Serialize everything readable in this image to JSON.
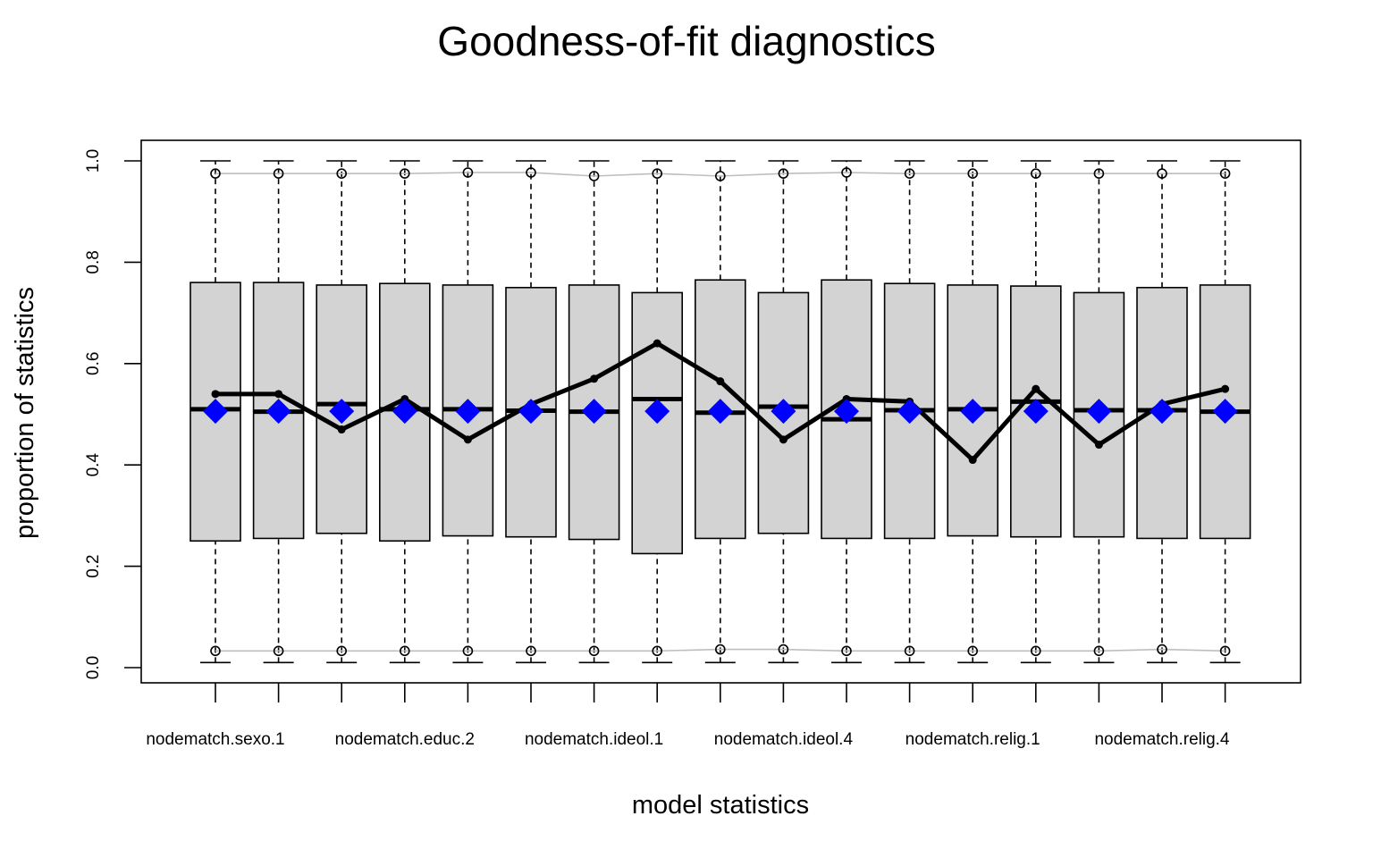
{
  "chart_data": {
    "type": "boxplot",
    "title": "Goodness-of-fit diagnostics",
    "xlabel": "model statistics",
    "ylabel": "proportion of statistics",
    "ylim": [
      0.0,
      1.0
    ],
    "yticks": [
      "0.0",
      "0.2",
      "0.4",
      "0.6",
      "0.8",
      "1.0"
    ],
    "xtick_labels": [
      "nodematch.sexo.1",
      "nodematch.educ.2",
      "nodematch.ideol.1",
      "nodematch.ideol.4",
      "nodematch.relig.1",
      "nodematch.relig.4"
    ],
    "xtick_label_positions": [
      1,
      4,
      7,
      10,
      13,
      16
    ],
    "n_boxes": 17,
    "boxes": [
      {
        "q1": 0.25,
        "median": 0.51,
        "q3": 0.76,
        "whisker_low": 0.01,
        "whisker_high": 1.0
      },
      {
        "q1": 0.255,
        "median": 0.505,
        "q3": 0.76,
        "whisker_low": 0.01,
        "whisker_high": 1.0
      },
      {
        "q1": 0.265,
        "median": 0.52,
        "q3": 0.755,
        "whisker_low": 0.01,
        "whisker_high": 1.0
      },
      {
        "q1": 0.25,
        "median": 0.51,
        "q3": 0.758,
        "whisker_low": 0.01,
        "whisker_high": 1.0
      },
      {
        "q1": 0.26,
        "median": 0.51,
        "q3": 0.755,
        "whisker_low": 0.01,
        "whisker_high": 1.0
      },
      {
        "q1": 0.258,
        "median": 0.507,
        "q3": 0.75,
        "whisker_low": 0.01,
        "whisker_high": 1.0
      },
      {
        "q1": 0.253,
        "median": 0.505,
        "q3": 0.755,
        "whisker_low": 0.01,
        "whisker_high": 1.0
      },
      {
        "q1": 0.225,
        "median": 0.53,
        "q3": 0.74,
        "whisker_low": 0.01,
        "whisker_high": 1.0
      },
      {
        "q1": 0.255,
        "median": 0.503,
        "q3": 0.765,
        "whisker_low": 0.01,
        "whisker_high": 1.0
      },
      {
        "q1": 0.265,
        "median": 0.515,
        "q3": 0.74,
        "whisker_low": 0.01,
        "whisker_high": 1.0
      },
      {
        "q1": 0.255,
        "median": 0.49,
        "q3": 0.765,
        "whisker_low": 0.01,
        "whisker_high": 1.0
      },
      {
        "q1": 0.255,
        "median": 0.508,
        "q3": 0.758,
        "whisker_low": 0.01,
        "whisker_high": 1.0
      },
      {
        "q1": 0.26,
        "median": 0.51,
        "q3": 0.755,
        "whisker_low": 0.01,
        "whisker_high": 1.0
      },
      {
        "q1": 0.258,
        "median": 0.525,
        "q3": 0.753,
        "whisker_low": 0.01,
        "whisker_high": 1.0
      },
      {
        "q1": 0.258,
        "median": 0.508,
        "q3": 0.74,
        "whisker_low": 0.01,
        "whisker_high": 1.0
      },
      {
        "q1": 0.255,
        "median": 0.508,
        "q3": 0.75,
        "whisker_low": 0.01,
        "whisker_high": 1.0
      },
      {
        "q1": 0.255,
        "median": 0.505,
        "q3": 0.755,
        "whisker_low": 0.01,
        "whisker_high": 1.0
      }
    ],
    "observed": [
      0.54,
      0.54,
      0.47,
      0.53,
      0.45,
      0.52,
      0.57,
      0.64,
      0.565,
      0.45,
      0.53,
      0.525,
      0.41,
      0.55,
      0.44,
      0.52,
      0.55
    ],
    "simulated_mean": [
      0.506,
      0.506,
      0.506,
      0.506,
      0.506,
      0.506,
      0.506,
      0.506,
      0.506,
      0.506,
      0.506,
      0.506,
      0.506,
      0.506,
      0.506,
      0.506,
      0.506
    ],
    "upper_range": [
      0.975,
      0.975,
      0.975,
      0.975,
      0.977,
      0.977,
      0.97,
      0.975,
      0.97,
      0.975,
      0.977,
      0.975,
      0.975,
      0.975,
      0.975,
      0.975,
      0.975
    ],
    "lower_range": [
      0.033,
      0.033,
      0.033,
      0.033,
      0.033,
      0.033,
      0.033,
      0.033,
      0.036,
      0.036,
      0.033,
      0.033,
      0.033,
      0.033,
      0.033,
      0.036,
      0.033
    ],
    "colors": {
      "box_fill": "#d3d3d3",
      "box_stroke": "#000000",
      "observed_line": "#000000",
      "mean_marker": "#0000ff",
      "range_line": "#bebebe"
    }
  }
}
